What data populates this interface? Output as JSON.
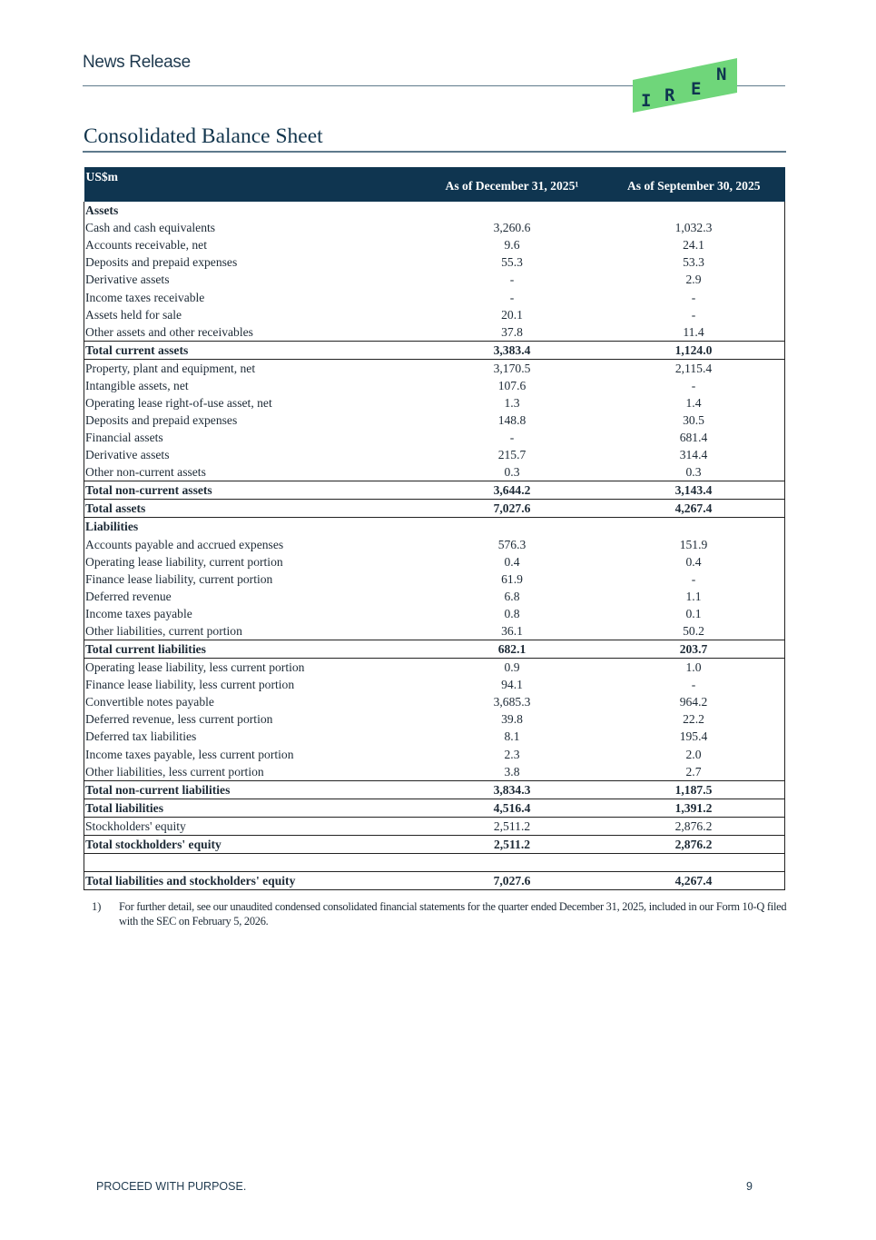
{
  "header": {
    "section": "News Release",
    "logo_text": "IREN",
    "brand_green": "#6fd67a",
    "brand_navy": "#0f3550"
  },
  "title": "Consolidated Balance Sheet",
  "table": {
    "columns": [
      "US$m",
      "As of December 31, 2025¹",
      "As of September 30, 2025"
    ],
    "rows": [
      {
        "type": "heading",
        "label": "Assets",
        "dec": "",
        "sep": ""
      },
      {
        "type": "item",
        "label": "Cash and cash equivalents",
        "dec": "3,260.6",
        "sep": "1,032.3"
      },
      {
        "type": "item",
        "label": "Accounts receivable, net",
        "dec": "9.6",
        "sep": "24.1"
      },
      {
        "type": "item",
        "label": "Deposits and prepaid expenses",
        "dec": "55.3",
        "sep": "53.3"
      },
      {
        "type": "item",
        "label": "Derivative assets",
        "dec": "-",
        "sep": "2.9"
      },
      {
        "type": "item",
        "label": "Income taxes receivable",
        "dec": "-",
        "sep": "-"
      },
      {
        "type": "item",
        "label": "Assets held for sale",
        "dec": "20.1",
        "sep": "-"
      },
      {
        "type": "item",
        "label": "Other assets and other receivables",
        "dec": "37.8",
        "sep": "11.4"
      },
      {
        "type": "total",
        "label": "Total current assets",
        "dec": "3,383.4",
        "sep": "1,124.0"
      },
      {
        "type": "item",
        "label": "Property, plant and equipment, net",
        "dec": "3,170.5",
        "sep": "2,115.4"
      },
      {
        "type": "item",
        "label": "Intangible assets, net",
        "dec": "107.6",
        "sep": "-"
      },
      {
        "type": "item",
        "label": "Operating lease right-of-use asset, net",
        "dec": "1.3",
        "sep": "1.4"
      },
      {
        "type": "item",
        "label": "Deposits and prepaid expenses",
        "dec": "148.8",
        "sep": "30.5"
      },
      {
        "type": "item",
        "label": "Financial assets",
        "dec": "-",
        "sep": "681.4"
      },
      {
        "type": "item",
        "label": "Derivative assets",
        "dec": "215.7",
        "sep": "314.4"
      },
      {
        "type": "item",
        "label": "Other non-current assets",
        "dec": "0.3",
        "sep": "0.3"
      },
      {
        "type": "total",
        "label": "Total non-current assets",
        "dec": "3,644.2",
        "sep": "3,143.4"
      },
      {
        "type": "total",
        "label": "Total assets",
        "dec": "7,027.6",
        "sep": "4,267.4"
      },
      {
        "type": "heading",
        "label": "Liabilities",
        "dec": "",
        "sep": ""
      },
      {
        "type": "item",
        "label": "Accounts payable and accrued expenses",
        "dec": "576.3",
        "sep": "151.9"
      },
      {
        "type": "item",
        "label": "Operating lease liability, current portion",
        "dec": "0.4",
        "sep": "0.4"
      },
      {
        "type": "item",
        "label": "Finance lease liability, current portion",
        "dec": "61.9",
        "sep": "-"
      },
      {
        "type": "item",
        "label": "Deferred revenue",
        "dec": "6.8",
        "sep": "1.1"
      },
      {
        "type": "item",
        "label": "Income taxes payable",
        "dec": "0.8",
        "sep": "0.1"
      },
      {
        "type": "item",
        "label": "Other liabilities, current portion",
        "dec": "36.1",
        "sep": "50.2"
      },
      {
        "type": "total",
        "label": "Total current liabilities",
        "dec": "682.1",
        "sep": "203.7"
      },
      {
        "type": "item",
        "label": "Operating lease liability, less current portion",
        "dec": "0.9",
        "sep": "1.0"
      },
      {
        "type": "item",
        "label": "Finance lease liability, less current portion",
        "dec": "94.1",
        "sep": "-"
      },
      {
        "type": "item",
        "label": "Convertible notes payable",
        "dec": "3,685.3",
        "sep": "964.2"
      },
      {
        "type": "item",
        "label": "Deferred revenue, less current portion",
        "dec": "39.8",
        "sep": "22.2"
      },
      {
        "type": "item",
        "label": "Deferred tax liabilities",
        "dec": "8.1",
        "sep": "195.4"
      },
      {
        "type": "item",
        "label": "Income taxes payable, less current portion",
        "dec": "2.3",
        "sep": "2.0"
      },
      {
        "type": "item",
        "label": "Other liabilities, less current portion",
        "dec": "3.8",
        "sep": "2.7"
      },
      {
        "type": "total",
        "label": "Total non-current liabilities",
        "dec": "3,834.3",
        "sep": "1,187.5"
      },
      {
        "type": "total",
        "label": "Total liabilities",
        "dec": "4,516.4",
        "sep": "1,391.2"
      },
      {
        "type": "itemb",
        "label": "Stockholders' equity",
        "dec": "2,511.2",
        "sep": "2,876.2"
      },
      {
        "type": "total",
        "label": "Total stockholders' equity",
        "dec": "2,511.2",
        "sep": "2,876.2"
      },
      {
        "type": "blank",
        "label": "",
        "dec": "",
        "sep": ""
      },
      {
        "type": "total",
        "label": "Total liabilities and stockholders' equity",
        "dec": "7,027.6",
        "sep": "4,267.4"
      }
    ]
  },
  "footnote": {
    "number": "1)",
    "text": "For further detail, see our unaudited condensed consolidated financial statements for the quarter ended December 31, 2025, included in our Form 10-Q filed with the SEC on February 5, 2026."
  },
  "footer": {
    "tagline": "PROCEED WITH PURPOSE.",
    "page": "9"
  }
}
